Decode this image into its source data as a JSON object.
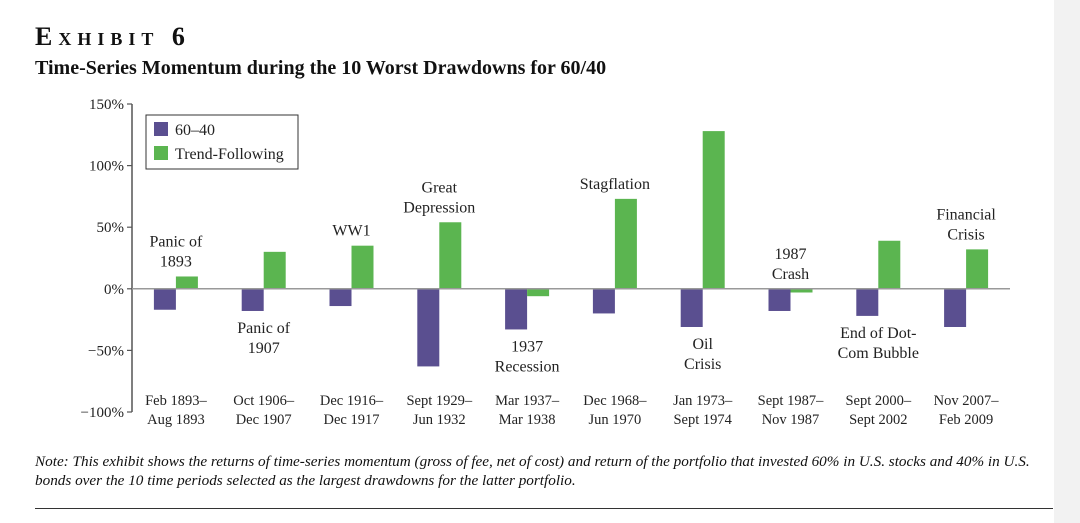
{
  "exhibit_label": "Exhibit 6",
  "subtitle": "Time-Series Momentum during the 10 Worst Drawdowns for 60/40",
  "note": "Note: This exhibit shows the returns of time-series momentum (gross of fee, net of cost) and return of the portfolio that invested 60% in U.S. stocks and 40% in U.S. bonds over the 10 time periods selected as the largest drawdowns for the latter portfolio.",
  "colors": {
    "series_60_40": "#5a4f90",
    "series_trend": "#5bb550",
    "axis": "#555555"
  },
  "chart_data": {
    "type": "bar",
    "title": "",
    "xlabel": "",
    "ylabel": "",
    "ylim": [
      -100,
      150
    ],
    "yticks": [
      {
        "value": 150,
        "label": "150%"
      },
      {
        "value": 100,
        "label": "100%"
      },
      {
        "value": 50,
        "label": "50%"
      },
      {
        "value": 0,
        "label": "0%"
      },
      {
        "value": -50,
        "label": "−50%"
      },
      {
        "value": -100,
        "label": "−100%"
      }
    ],
    "legend_position": "top-left",
    "categories": [
      [
        "Feb 1893–",
        "Aug 1893"
      ],
      [
        "Oct 1906–",
        "Dec 1907"
      ],
      [
        "Dec 1916–",
        "Dec 1917"
      ],
      [
        "Sept 1929–",
        "Jun 1932"
      ],
      [
        "Mar 1937–",
        "Mar 1938"
      ],
      [
        "Dec 1968–",
        "Jun 1970"
      ],
      [
        "Jan 1973–",
        "Sept 1974"
      ],
      [
        "Sept 1987–",
        "Nov 1987"
      ],
      [
        "Sept 2000–",
        "Sept 2002"
      ],
      [
        "Nov 2007–",
        "Feb 2009"
      ]
    ],
    "series": [
      {
        "name": "60–40",
        "values": [
          -17,
          -18,
          -14,
          -63,
          -33,
          -20,
          -31,
          -18,
          -22,
          -31
        ]
      },
      {
        "name": "Trend-Following",
        "values": [
          10,
          30,
          35,
          54,
          -6,
          73,
          128,
          -3,
          39,
          32
        ]
      }
    ],
    "annotations": [
      {
        "category": 0,
        "anchor": "above",
        "lines": [
          "Panic of",
          "1893"
        ]
      },
      {
        "category": 1,
        "anchor": "below",
        "lines": [
          "Panic of",
          "1907"
        ]
      },
      {
        "category": 2,
        "anchor": "above",
        "lines": [
          "WW1"
        ]
      },
      {
        "category": 3,
        "anchor": "above",
        "lines": [
          "Great",
          "Depression"
        ]
      },
      {
        "category": 4,
        "anchor": "below",
        "lines": [
          "1937",
          "Recession"
        ]
      },
      {
        "category": 5,
        "anchor": "above",
        "lines": [
          "Stagflation"
        ]
      },
      {
        "category": 6,
        "anchor": "below",
        "lines": [
          "Oil",
          "Crisis"
        ]
      },
      {
        "category": 7,
        "anchor": "above",
        "lines": [
          "1987",
          "Crash"
        ]
      },
      {
        "category": 8,
        "anchor": "below",
        "lines": [
          "End of Dot-",
          "Com Bubble"
        ]
      },
      {
        "category": 9,
        "anchor": "above",
        "lines": [
          "Financial",
          "Crisis"
        ]
      }
    ]
  }
}
